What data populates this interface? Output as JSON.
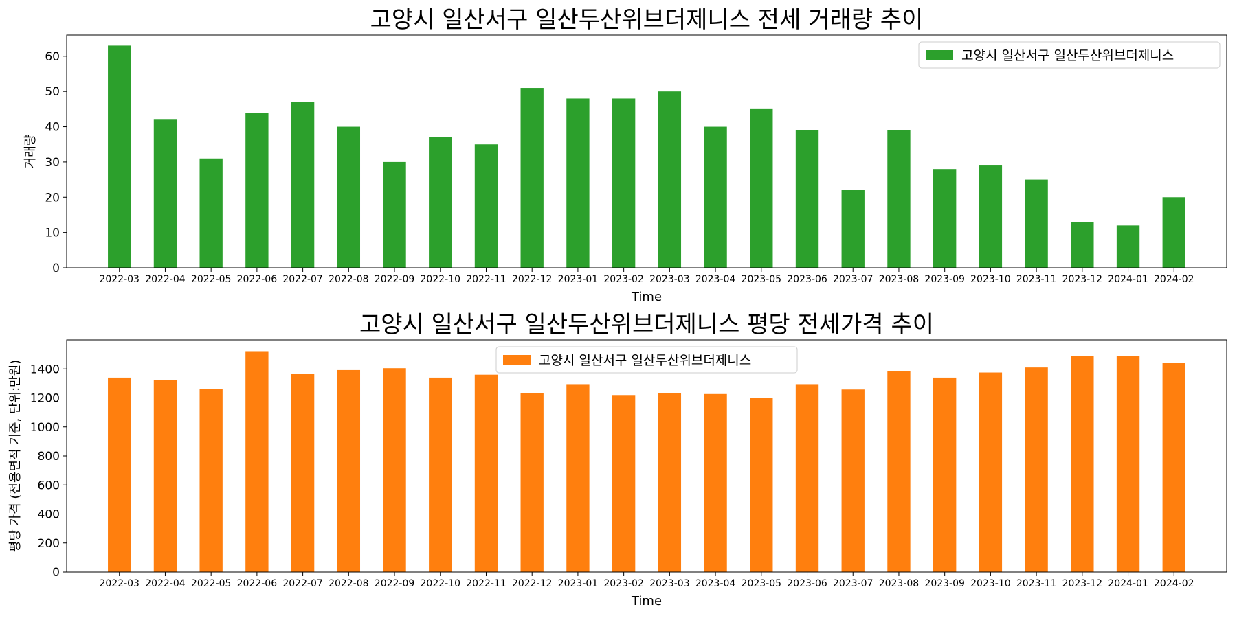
{
  "colors": {
    "volume": "#2ca02c",
    "price": "#ff7f0e"
  },
  "chart_data": [
    {
      "type": "bar",
      "title": "고양시 일산서구 일산두산위브더제니스 전세 거래량 추이",
      "xlabel": "Time",
      "ylabel": "거래량",
      "ylim": [
        0,
        66
      ],
      "yticks": [
        0,
        10,
        20,
        30,
        40,
        50,
        60
      ],
      "grid": false,
      "legend_position": "top-right",
      "categories": [
        "2022-03",
        "2022-04",
        "2022-05",
        "2022-06",
        "2022-07",
        "2022-08",
        "2022-09",
        "2022-10",
        "2022-11",
        "2022-12",
        "2023-01",
        "2023-02",
        "2023-03",
        "2023-04",
        "2023-05",
        "2023-06",
        "2023-07",
        "2023-08",
        "2023-09",
        "2023-10",
        "2023-11",
        "2023-12",
        "2024-01",
        "2024-02"
      ],
      "series": [
        {
          "name": "고양시 일산서구 일산두산위브더제니스",
          "color": "#2ca02c",
          "values": [
            63,
            42,
            31,
            44,
            47,
            40,
            30,
            37,
            35,
            51,
            48,
            48,
            50,
            40,
            45,
            39,
            22,
            39,
            28,
            29,
            25,
            13,
            12,
            20
          ]
        }
      ]
    },
    {
      "type": "bar",
      "title": "고양시 일산서구 일산두산위브더제니스 평당 전세가격 추이",
      "xlabel": "Time",
      "ylabel": "평당 가격 (전용면적 기준, 단위:만원)",
      "ylim": [
        0,
        1600
      ],
      "yticks": [
        0,
        200,
        400,
        600,
        800,
        1000,
        1200,
        1400
      ],
      "grid": false,
      "legend_position": "top-center",
      "categories": [
        "2022-03",
        "2022-04",
        "2022-05",
        "2022-06",
        "2022-07",
        "2022-08",
        "2022-09",
        "2022-10",
        "2022-11",
        "2022-12",
        "2023-01",
        "2023-02",
        "2023-03",
        "2023-04",
        "2023-05",
        "2023-06",
        "2023-07",
        "2023-08",
        "2023-09",
        "2023-10",
        "2023-11",
        "2023-12",
        "2024-01",
        "2024-02"
      ],
      "series": [
        {
          "name": "고양시 일산서구 일산두산위브더제니스",
          "color": "#ff7f0e",
          "values": [
            1340,
            1325,
            1262,
            1522,
            1365,
            1392,
            1405,
            1340,
            1360,
            1232,
            1295,
            1220,
            1232,
            1227,
            1200,
            1295,
            1258,
            1383,
            1340,
            1375,
            1410,
            1490,
            1490,
            1440
          ]
        }
      ]
    }
  ]
}
